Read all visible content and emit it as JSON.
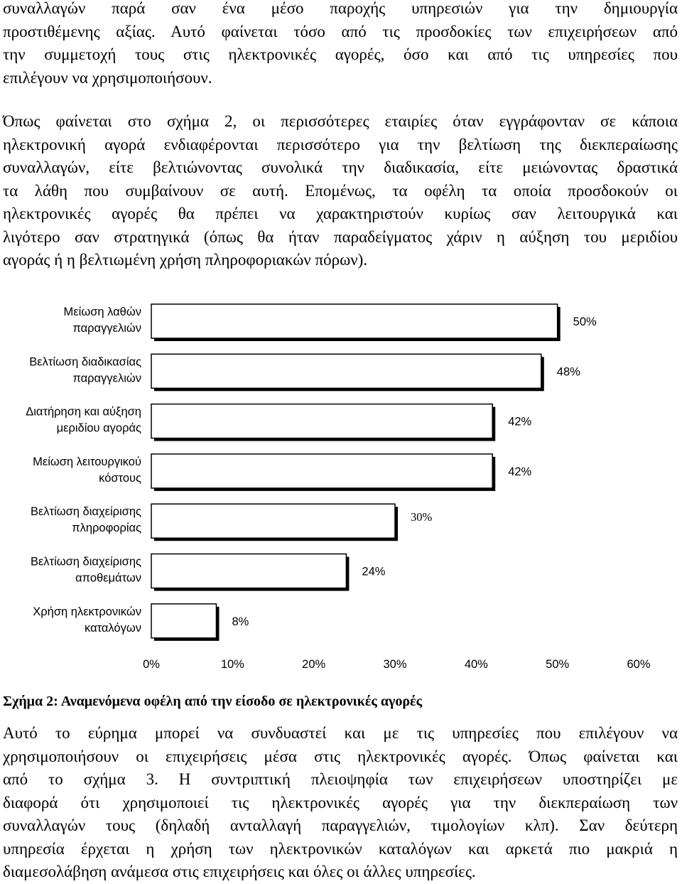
{
  "paragraph_1": {
    "lines": [
      "συναλλαγών παρά σαν ένα μέσο παροχής υπηρεσιών για την δημιουργία",
      "προστιθέμενης αξίας. Αυτό φαίνεται τόσο από τις προσδοκίες των επιχειρήσεων από",
      "την συμμετοχή τους στις ηλεκτρονικές αγορές, όσο και από τις υπηρεσίες που",
      "επιλέγουν να χρησιμοποιήσουν."
    ]
  },
  "paragraph_2": {
    "lines": [
      "Όπως φαίνεται στο σχήμα 2, οι περισσότερες εταιρίες όταν εγγράφονταν σε κάποια",
      "ηλεκτρονική αγορά ενδιαφέρονται περισσότερο για την βελτίωση της διεκπεραίωσης",
      "συναλλαγών, είτε βελτιώνοντας συνολικά την διαδικασία, είτε μειώνοντας δραστικά",
      "τα λάθη που συμβαίνουν σε αυτή. Επομένως, τα οφέλη τα οποία προσδοκούν οι",
      "ηλεκτρονικές αγορές θα πρέπει να χαρακτηριστούν κυρίως σαν λειτουργικά και",
      "λιγότερο σαν στρατηγικά (όπως θα ήταν παραδείγματος χάριν η αύξηση του μεριδίου",
      "αγοράς ή η βελτιωμένη χρήση πληροφοριακών πόρων)."
    ]
  },
  "chart_data": {
    "type": "bar",
    "orientation": "horizontal",
    "title": "",
    "categories": [
      [
        "Μείωση λαθών",
        "παραγγελιών"
      ],
      [
        "Βελτίωση διαδικασίας",
        "παραγγελιών"
      ],
      [
        "Διατήρηση και αύξηση",
        "μεριδίου αγοράς"
      ],
      [
        "Μείωση λειτουργικού",
        "κόστους"
      ],
      [
        "Βελτίωση διαχείρισης",
        "πληροφορίας"
      ],
      [
        "Βελτίωση διαχείρισης",
        "αποθεμάτων"
      ],
      [
        "Χρήση ηλεκτρονικών",
        "καταλόγων"
      ]
    ],
    "values": [
      50,
      48,
      42,
      42,
      30,
      24,
      8
    ],
    "data_labels": [
      "50%",
      "48%",
      "42%",
      "42%",
      "30%",
      "24%",
      "8%"
    ],
    "xlim": [
      0,
      60
    ],
    "xticks": [
      "0%",
      "10%",
      "20%",
      "30%",
      "40%",
      "50%",
      "60%"
    ],
    "xlabel": "",
    "ylabel": "",
    "legend": "none",
    "grid": false,
    "bar_fill": "#ffffff",
    "bar_stroke": "#000000"
  },
  "caption": "Σχήμα 2: Αναμενόμενα οφέλη από την είσοδο σε ηλεκτρονικές αγορές",
  "paragraph_3": {
    "lines": [
      "Αυτό το εύρημα μπορεί να συνδυαστεί και με τις υπηρεσίες που επιλέγουν να",
      "χρησιμοποιήσουν οι επιχειρήσεις μέσα στις ηλεκτρονικές αγορές. Όπως φαίνεται και",
      "από το σχήμα 3. Η συντριπτική πλειοψηφία των επιχειρήσεων υποστηρίζει με",
      "διαφορά ότι χρησιμοποιεί τις ηλεκτρονικές αγορές για την διεκπεραίωση των",
      "συναλλαγών τους (δηλαδή ανταλλαγή παραγγελιών, τιμολογίων κλπ). Σαν δεύτερη",
      "υπηρεσία έρχεται η χρήση των ηλεκτρονικών καταλόγων και αρκετά πιο μακριά η",
      "διαμεσολάβηση ανάμεσα στις επιχειρήσεις και όλες οι άλλες υπηρεσίες."
    ]
  }
}
